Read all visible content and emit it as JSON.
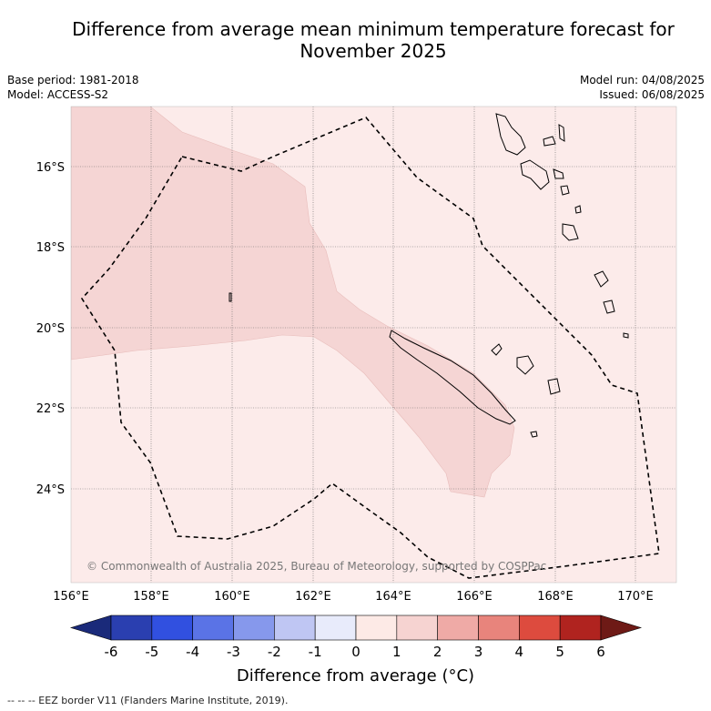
{
  "title": "Difference from average mean minimum temperature forecast for November 2025",
  "meta": {
    "base_period": "Base period: 1981-2018",
    "model": "Model: ACCESS-S2",
    "model_run": "Model run: 04/08/2025",
    "issued": "Issued: 06/08/2025"
  },
  "map": {
    "lat_labels": [
      "16°S",
      "18°S",
      "20°S",
      "22°S",
      "24°S"
    ],
    "lon_labels": [
      "156°E",
      "158°E",
      "160°E",
      "162°E",
      "164°E",
      "166°E",
      "168°E",
      "170°E"
    ],
    "copyright": "© Commonwealth of Australia 2025, Bureau of Meteorology, supported by COSPPac",
    "fill_colors": {
      "category_0_1": "#fcebea",
      "category_1_2": "#f5d5d4"
    }
  },
  "colorbar": {
    "ticks": [
      "-6",
      "-5",
      "-4",
      "-3",
      "-2",
      "-1",
      "0",
      "1",
      "2",
      "3",
      "4",
      "5",
      "6"
    ],
    "colors": [
      "#1a2a7a",
      "#2a3fb0",
      "#3150e0",
      "#5a73e6",
      "#8698ec",
      "#bfc6f3",
      "#e8ebfb",
      "#fdeae6",
      "#f6d3d1",
      "#efaaa6",
      "#e8847c",
      "#dd4b3e",
      "#b0231f",
      "#6e1a16"
    ],
    "label": "Difference from average (°C)"
  },
  "footer": "--  --  -- EEZ border V11 (Flanders Marine Institute, 2019)."
}
